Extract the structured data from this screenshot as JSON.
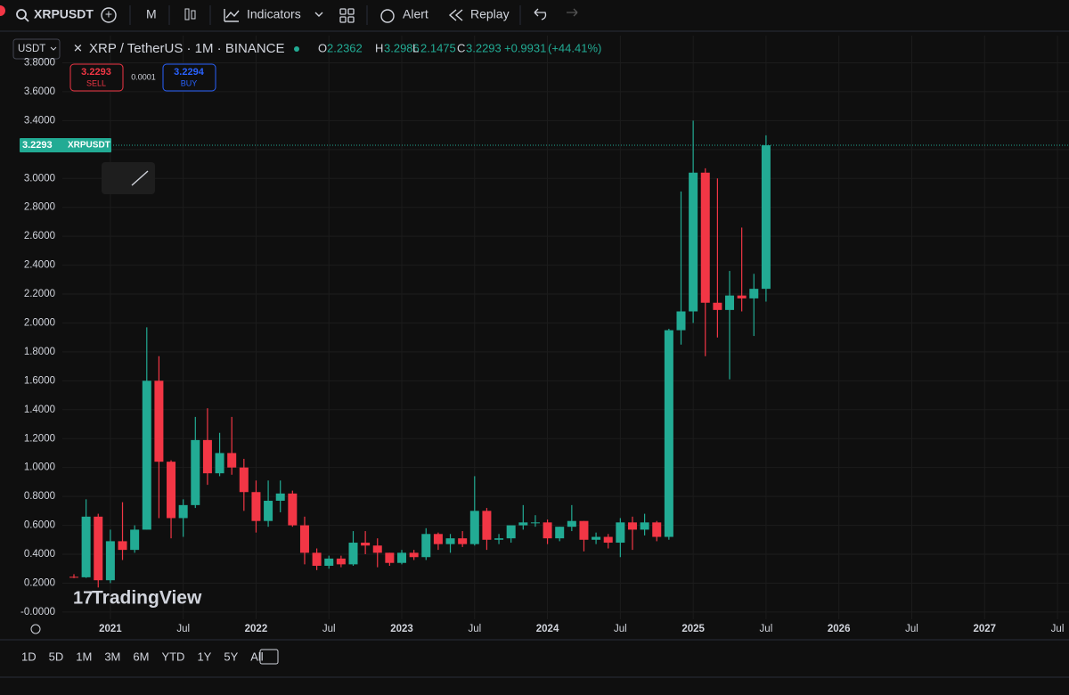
{
  "toolbar": {
    "symbol": "XRPUSDT",
    "interval": "M",
    "indicators": "Indicators",
    "alert": "Alert",
    "replay": "Replay"
  },
  "header": {
    "currency": "USDT",
    "pair": "XRP / TetherUS · 1M · BINANCE",
    "o": "O",
    "h": "H",
    "l": "L",
    "c": "C",
    "change": "+0.9931",
    "change_pct": "(+44.41%)",
    "sell_price": "3.2293",
    "sell": "SELL",
    "spread": "0.0001",
    "buy_price": "3.2294",
    "buy": "BUY"
  },
  "watermark": "TradingView",
  "ranges": [
    "1D",
    "5D",
    "1M",
    "3M",
    "6M",
    "YTD",
    "1Y",
    "5Y",
    "All"
  ],
  "chart_data": {
    "type": "candlestick",
    "up_color": "#22ab94",
    "down_color": "#f23645",
    "grid": true,
    "last_price": 3.2293,
    "last_price_symbol": "XRPUSDT",
    "x": [
      "2020-10",
      "2020-11",
      "2020-12",
      "2021-01",
      "2021-02",
      "2021-03",
      "2021-04",
      "2021-05",
      "2021-06",
      "2021-07",
      "2021-08",
      "2021-09",
      "2021-10",
      "2021-11",
      "2021-12",
      "2022-01",
      "2022-02",
      "2022-03",
      "2022-04",
      "2022-05",
      "2022-06",
      "2022-07",
      "2022-08",
      "2022-09",
      "2022-10",
      "2022-11",
      "2022-12",
      "2023-01",
      "2023-02",
      "2023-03",
      "2023-04",
      "2023-05",
      "2023-06",
      "2023-07",
      "2023-08",
      "2023-09",
      "2023-10",
      "2023-11",
      "2023-12",
      "2024-01",
      "2024-02",
      "2024-03",
      "2024-04",
      "2024-05",
      "2024-06",
      "2024-07",
      "2024-08",
      "2024-09",
      "2024-10",
      "2024-11",
      "2024-12",
      "2025-01",
      "2025-02",
      "2025-03",
      "2025-04",
      "2025-05",
      "2025-06",
      "2025-07"
    ],
    "open": [
      0.2437,
      0.2405,
      0.66,
      0.22,
      0.49,
      0.43,
      0.57,
      1.6,
      1.04,
      0.65,
      0.74,
      1.19,
      0.96,
      1.1,
      1.0,
      0.83,
      0.63,
      0.77,
      0.82,
      0.6,
      0.41,
      0.32,
      0.37,
      0.33,
      0.48,
      0.46,
      0.41,
      0.34,
      0.41,
      0.38,
      0.54,
      0.47,
      0.51,
      0.47,
      0.7,
      0.5,
      0.51,
      0.6,
      0.62,
      0.62,
      0.51,
      0.59,
      0.63,
      0.5,
      0.52,
      0.48,
      0.62,
      0.57,
      0.62,
      0.52,
      1.95,
      2.08,
      3.04,
      2.14,
      2.09,
      2.19,
      2.17,
      2.2362
    ],
    "high": [
      0.262,
      0.78,
      0.68,
      0.57,
      0.76,
      0.6,
      1.97,
      1.77,
      1.05,
      0.78,
      1.35,
      1.41,
      1.24,
      1.35,
      1.06,
      0.91,
      0.91,
      0.91,
      0.84,
      0.66,
      0.44,
      0.39,
      0.39,
      0.56,
      0.56,
      0.51,
      0.41,
      0.43,
      0.43,
      0.58,
      0.55,
      0.54,
      0.56,
      0.94,
      0.72,
      0.54,
      0.58,
      0.74,
      0.67,
      0.64,
      0.59,
      0.74,
      0.63,
      0.55,
      0.54,
      0.65,
      0.66,
      0.68,
      0.63,
      1.96,
      2.91,
      3.4,
      3.07,
      3.0,
      2.36,
      2.66,
      2.34,
      3.2986
    ],
    "low": [
      0.2345,
      0.236,
      0.17,
      0.2,
      0.36,
      0.41,
      0.57,
      0.65,
      0.51,
      0.52,
      0.72,
      0.88,
      0.94,
      0.95,
      0.7,
      0.55,
      0.59,
      0.69,
      0.59,
      0.33,
      0.29,
      0.3,
      0.31,
      0.32,
      0.4,
      0.31,
      0.32,
      0.33,
      0.36,
      0.36,
      0.43,
      0.41,
      0.45,
      0.46,
      0.43,
      0.47,
      0.48,
      0.57,
      0.59,
      0.47,
      0.49,
      0.56,
      0.42,
      0.47,
      0.44,
      0.38,
      0.43,
      0.53,
      0.49,
      0.5,
      1.85,
      2.0,
      1.77,
      1.9,
      1.61,
      2.08,
      1.91,
      2.1475
    ],
    "close": [
      0.2405,
      0.66,
      0.22,
      0.49,
      0.43,
      0.57,
      1.6,
      1.04,
      0.65,
      0.74,
      1.19,
      0.96,
      1.1,
      1.0,
      0.83,
      0.63,
      0.77,
      0.82,
      0.6,
      0.41,
      0.32,
      0.37,
      0.33,
      0.48,
      0.46,
      0.41,
      0.34,
      0.41,
      0.38,
      0.54,
      0.47,
      0.51,
      0.47,
      0.7,
      0.5,
      0.51,
      0.6,
      0.62,
      0.62,
      0.51,
      0.59,
      0.63,
      0.5,
      0.52,
      0.48,
      0.62,
      0.57,
      0.62,
      0.52,
      1.95,
      2.08,
      3.04,
      2.14,
      2.09,
      2.19,
      2.17,
      2.2362,
      3.2293
    ],
    "ylim": [
      -0.05,
      3.84
    ],
    "yticks": [
      {
        "value": 0,
        "label": "-0.0000"
      },
      {
        "value": 0.2,
        "label": "0.2000"
      },
      {
        "value": 0.4,
        "label": "0.4000"
      },
      {
        "value": 0.6,
        "label": "0.6000"
      },
      {
        "value": 0.8,
        "label": "0.8000"
      },
      {
        "value": 1,
        "label": "1.0000"
      },
      {
        "value": 1.2,
        "label": "1.2000"
      },
      {
        "value": 1.4,
        "label": "1.4000"
      },
      {
        "value": 1.6,
        "label": "1.6000"
      },
      {
        "value": 1.8,
        "label": "1.8000"
      },
      {
        "value": 2,
        "label": "2.0000"
      },
      {
        "value": 2.2,
        "label": "2.2000"
      },
      {
        "value": 2.4,
        "label": "2.4000"
      },
      {
        "value": 2.6,
        "label": "2.6000"
      },
      {
        "value": 2.8,
        "label": "2.8000"
      },
      {
        "value": 3,
        "label": "3.0000"
      },
      {
        "value": 3.2,
        "label": "3.2000"
      },
      {
        "value": 3.4,
        "label": "3.4000"
      },
      {
        "value": 3.6,
        "label": "3.6000"
      },
      {
        "value": 3.8,
        "label": "3.8000"
      }
    ],
    "xticks": [
      {
        "value": "2021-01",
        "label": "2021"
      },
      {
        "value": "2021-07",
        "label": "Jul"
      },
      {
        "value": "2022-01",
        "label": "2022"
      },
      {
        "value": "2022-07",
        "label": "Jul"
      },
      {
        "value": "2023-01",
        "label": "2023"
      },
      {
        "value": "2023-07",
        "label": "Jul"
      },
      {
        "value": "2024-01",
        "label": "2024"
      },
      {
        "value": "2024-07",
        "label": "Jul"
      },
      {
        "value": "2025-01",
        "label": "2025"
      },
      {
        "value": "2025-07",
        "label": "Jul"
      },
      {
        "value": "2026-01",
        "label": "2026"
      },
      {
        "value": "2026-07",
        "label": "Jul"
      },
      {
        "value": "2027-01",
        "label": "2027"
      },
      {
        "value": "2027-07",
        "label": "Jul"
      }
    ]
  }
}
